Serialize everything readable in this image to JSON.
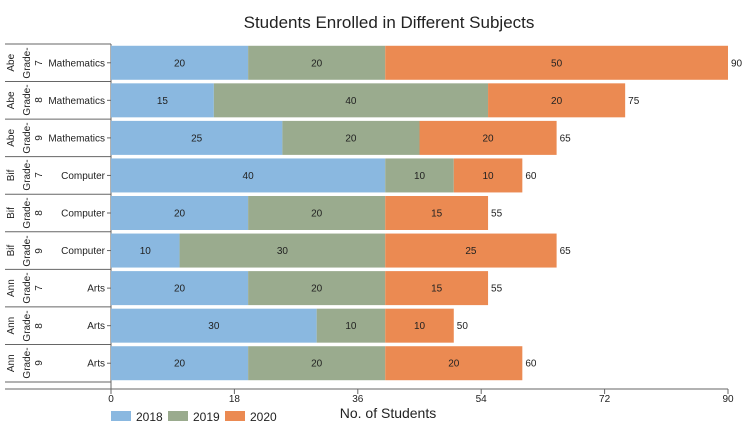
{
  "chart_data": {
    "type": "bar",
    "orientation": "horizontal",
    "stacked": true,
    "title": "Students Enrolled in Different Subjects",
    "xlabel": "No. of Students",
    "xlim": [
      0,
      90
    ],
    "xticks": [
      0,
      18,
      36,
      54,
      72,
      90
    ],
    "legend_position": "bottom-left",
    "rows": [
      {
        "teacher": "Abe",
        "grade": "Grade-7",
        "subject": "Mathematics",
        "total": 90
      },
      {
        "teacher": "Abe",
        "grade": "Grade-8",
        "subject": "Mathematics",
        "total": 75
      },
      {
        "teacher": "Abe",
        "grade": "Grade-9",
        "subject": "Mathematics",
        "total": 65
      },
      {
        "teacher": "Bif",
        "grade": "Grade-7",
        "subject": "Computer",
        "total": 60
      },
      {
        "teacher": "Bif",
        "grade": "Grade-8",
        "subject": "Computer",
        "total": 55
      },
      {
        "teacher": "Bif",
        "grade": "Grade-9",
        "subject": "Computer",
        "total": 65
      },
      {
        "teacher": "Ann",
        "grade": "Grade-7",
        "subject": "Arts",
        "total": 55
      },
      {
        "teacher": "Ann",
        "grade": "Grade-8",
        "subject": "Arts",
        "total": 50
      },
      {
        "teacher": "Ann",
        "grade": "Grade-9",
        "subject": "Arts",
        "total": 60
      }
    ],
    "series": [
      {
        "name": "2018",
        "color": "#8ab8e0",
        "values": [
          20,
          15,
          25,
          40,
          20,
          10,
          20,
          30,
          20
        ]
      },
      {
        "name": "2019",
        "color": "#9aab8e",
        "values": [
          20,
          40,
          20,
          10,
          20,
          30,
          20,
          10,
          20
        ]
      },
      {
        "name": "2020",
        "color": "#eb8a52",
        "values": [
          50,
          20,
          20,
          10,
          15,
          25,
          15,
          10,
          20
        ]
      }
    ]
  }
}
